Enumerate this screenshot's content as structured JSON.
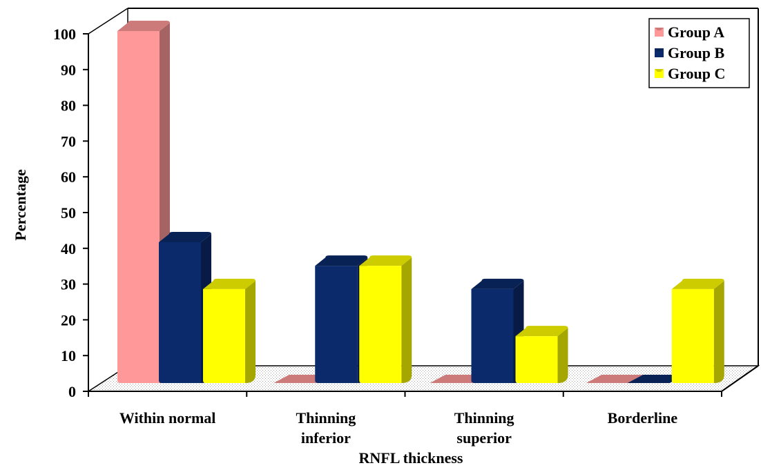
{
  "chart_data": {
    "type": "bar",
    "categories": [
      [
        "Within normal"
      ],
      [
        "Thinning",
        "inferior"
      ],
      [
        "Thinning",
        "superior"
      ],
      [
        "Borderline"
      ]
    ],
    "series": [
      {
        "name": "Group A",
        "values": [
          100,
          0,
          0,
          0
        ],
        "color": "#ff9999"
      },
      {
        "name": "Group B",
        "values": [
          40,
          33.3,
          26.7,
          0
        ],
        "color": "#0a2a6b"
      },
      {
        "name": "Group C",
        "values": [
          26.7,
          33.3,
          13.3,
          26.7
        ],
        "color": "#ffff00"
      }
    ],
    "ylim": [
      0,
      100
    ],
    "yticks": [
      0,
      10,
      20,
      30,
      40,
      50,
      60,
      70,
      80,
      90,
      100
    ],
    "xlabel": "RNFL thickness",
    "ylabel": "Percentage",
    "legend": "top-right",
    "grid": false
  }
}
